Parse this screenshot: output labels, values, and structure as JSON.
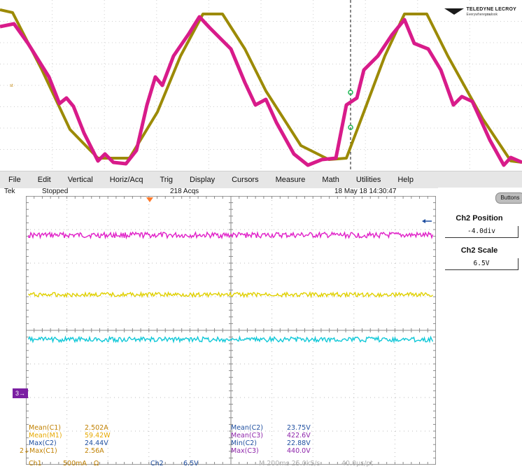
{
  "lecroy": {
    "brand": "TELEDYNE LECROY",
    "tagline_prefix": "Everywhere",
    "tagline_em": "you",
    "tagline_suffix": "look"
  },
  "menu": {
    "items": [
      "File",
      "Edit",
      "Vertical",
      "Horiz/Acq",
      "Trig",
      "Display",
      "Cursors",
      "Measure",
      "Math",
      "Utilities",
      "Help"
    ]
  },
  "status": {
    "brand": "Tek",
    "state": "Stopped",
    "acqs": "218 Acqs",
    "datetime": "18 May 18 14:30:47"
  },
  "side_panel": {
    "buttons_label": "Buttons",
    "position_label": "Ch2 Position",
    "position_value": "-4.0div",
    "scale_label": "Ch2 Scale",
    "scale_value": "6.5V"
  },
  "ref_marker": "3→",
  "measurements_left": [
    {
      "label": "Mean(C1)",
      "value": "2.502A",
      "color": "#c08000"
    },
    {
      "label": "Mean(M1)",
      "value": "59.42W",
      "color": "#e6a800"
    },
    {
      "label": "Max(C2)",
      "value": "24.44V",
      "color": "#1f4fa0"
    },
    {
      "label": "2↓Max(C1)",
      "value": "2.56A",
      "color": "#c08000"
    }
  ],
  "measurements_right": [
    {
      "label": "Mean(C2)",
      "value": "23.75V",
      "color": "#1f4fa0"
    },
    {
      "label": "Mean(C3)",
      "value": "422.6V",
      "color": "#8e24aa"
    },
    {
      "label": "Min(C2)",
      "value": "22.88V",
      "color": "#1f4fa0"
    },
    {
      "label": "Max(C3)",
      "value": "440.0V",
      "color": "#8e24aa"
    }
  ],
  "bottom": {
    "ch1_label": "Ch1",
    "ch1_scale": "500mA",
    "ch1_unit": "Ω",
    "ch2_label": "Ch2",
    "ch2_scale": "6.5V",
    "timebase": "M 200ms 25.0kS/s",
    "resolution": "40.0μs/pt"
  },
  "colors": {
    "trace_magenta": "#d81b8a",
    "trace_olive": "#9c8a06",
    "tek_magenta": "#e020c8",
    "tek_yellow": "#e0d000",
    "tek_cyan": "#10c8d8"
  }
}
